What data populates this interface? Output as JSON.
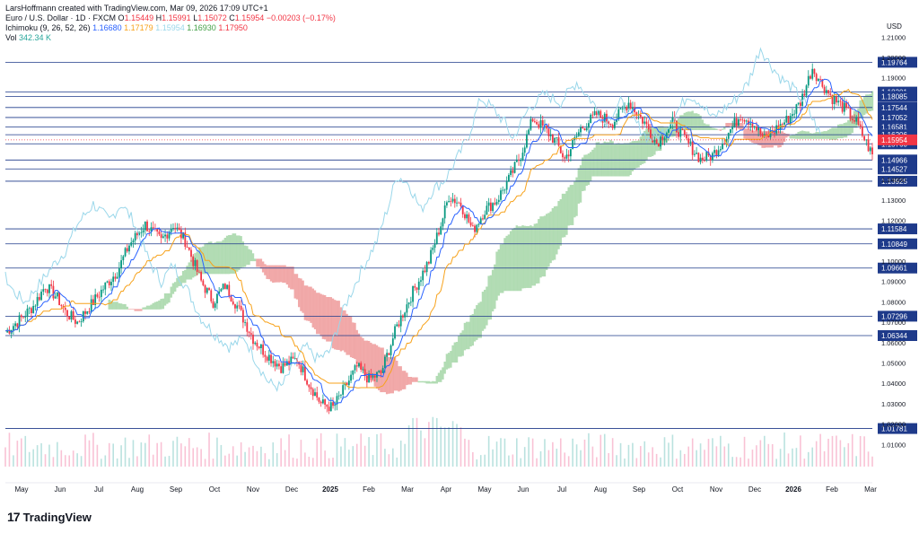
{
  "header": {
    "author_line": "LarsHoffmann created with TradingView.com, Mar 09, 2026 17:09 UTC+1",
    "symbol": "Euro / U.S. Dollar · 1D · FXCM",
    "ohlc": {
      "o_label": "O",
      "o": "1.15449",
      "h_label": "H",
      "h": "1.15991",
      "l_label": "L",
      "l": "1.15072",
      "c_label": "C",
      "c": "1.15954",
      "change": "−0.00203 (−0.17%)"
    },
    "ichimoku": {
      "label": "Ichimoku (9, 26, 52, 26)",
      "tenkan": "1.16680",
      "kijun": "1.17179",
      "lagging": "1.15954",
      "senkou_a": "1.16930",
      "senkou_b": "1.17950"
    },
    "volume": {
      "label": "Vol",
      "value": "342.34 K"
    }
  },
  "currency": "USD",
  "footer": {
    "logo": "TradingView"
  },
  "colors": {
    "up": "#089981",
    "down": "#f23645",
    "tenkan": "#2962ff",
    "kijun": "#f7a21b",
    "lagging": "#9ad7ea",
    "senkou_a": "#43a047",
    "senkou_b": "#c62828",
    "cloud_up": "#a5d6a7",
    "cloud_down": "#ef9a9a",
    "level_line": "#1e3a8a",
    "label_bg": "#1e3a8a",
    "price_label_bg": "#f23645"
  },
  "chart_data": {
    "type": "candlestick",
    "title": "Euro / U.S. Dollar · 1D · FXCM",
    "xlabel": "",
    "ylabel": "USD",
    "ylim": [
      1.0,
      1.215
    ],
    "x_ticks": [
      "May",
      "Jun",
      "Jul",
      "Aug",
      "Sep",
      "Oct",
      "Nov",
      "Dec",
      "2025",
      "Feb",
      "Mar",
      "Apr",
      "May",
      "Jun",
      "Jul",
      "Aug",
      "Sep",
      "Oct",
      "Nov",
      "Dec",
      "2026",
      "Feb",
      "Mar"
    ],
    "y_ticks": [
      "1.21000",
      "1.20000",
      "1.19000",
      "1.14000",
      "1.13000",
      "1.12000",
      "1.10000",
      "1.09000",
      "1.08000",
      "1.07000",
      "1.06000",
      "1.05000",
      "1.04000",
      "1.03000",
      "1.02000",
      "1.01000"
    ],
    "current_price": {
      "value": 1.15954,
      "label": "1.15954"
    },
    "horizontal_levels": [
      {
        "value": 1.19764,
        "label": "1.19764"
      },
      {
        "value": 1.18301,
        "label": "1.18301"
      },
      {
        "value": 1.18085,
        "label": "1.18085"
      },
      {
        "value": 1.17544,
        "label": "1.17544"
      },
      {
        "value": 1.17052,
        "label": "1.17052"
      },
      {
        "value": 1.16581,
        "label": "1.16581"
      },
      {
        "value": 1.16206,
        "label": "1.16206"
      },
      {
        "value": 1.1576,
        "label": "1.15760"
      },
      {
        "value": 1.14966,
        "label": "1.14966"
      },
      {
        "value": 1.14527,
        "label": "1.14527"
      },
      {
        "value": 1.13925,
        "label": "1.13925"
      },
      {
        "value": 1.11584,
        "label": "1.11584"
      },
      {
        "value": 1.10849,
        "label": "1.10849"
      },
      {
        "value": 1.09661,
        "label": "1.09661"
      },
      {
        "value": 1.07296,
        "label": "1.07296"
      },
      {
        "value": 1.06344,
        "label": "1.06344"
      },
      {
        "value": 1.01781,
        "label": "1.01781"
      }
    ],
    "price_path": [
      [
        0,
        1.065
      ],
      [
        8,
        1.072
      ],
      [
        14,
        1.078
      ],
      [
        20,
        1.088
      ],
      [
        26,
        1.082
      ],
      [
        30,
        1.075
      ],
      [
        36,
        1.07
      ],
      [
        44,
        1.08
      ],
      [
        50,
        1.088
      ],
      [
        56,
        1.095
      ],
      [
        62,
        1.108
      ],
      [
        70,
        1.118
      ],
      [
        78,
        1.11
      ],
      [
        84,
        1.118
      ],
      [
        90,
        1.11
      ],
      [
        98,
        1.09
      ],
      [
        104,
        1.08
      ],
      [
        110,
        1.088
      ],
      [
        116,
        1.078
      ],
      [
        124,
        1.062
      ],
      [
        130,
        1.055
      ],
      [
        138,
        1.048
      ],
      [
        146,
        1.052
      ],
      [
        152,
        1.04
      ],
      [
        158,
        1.03
      ],
      [
        164,
        1.028
      ],
      [
        170,
        1.038
      ],
      [
        176,
        1.048
      ],
      [
        182,
        1.042
      ],
      [
        188,
        1.045
      ],
      [
        196,
        1.068
      ],
      [
        204,
        1.085
      ],
      [
        212,
        1.1
      ],
      [
        218,
        1.118
      ],
      [
        222,
        1.132
      ],
      [
        228,
        1.128
      ],
      [
        234,
        1.115
      ],
      [
        240,
        1.125
      ],
      [
        246,
        1.13
      ],
      [
        252,
        1.14
      ],
      [
        258,
        1.152
      ],
      [
        264,
        1.17
      ],
      [
        270,
        1.165
      ],
      [
        276,
        1.158
      ],
      [
        280,
        1.15
      ],
      [
        288,
        1.165
      ],
      [
        296,
        1.172
      ],
      [
        304,
        1.168
      ],
      [
        312,
        1.178
      ],
      [
        320,
        1.168
      ],
      [
        326,
        1.158
      ],
      [
        334,
        1.168
      ],
      [
        340,
        1.16
      ],
      [
        348,
        1.15
      ],
      [
        354,
        1.152
      ],
      [
        360,
        1.16
      ],
      [
        368,
        1.172
      ],
      [
        374,
        1.168
      ],
      [
        380,
        1.16
      ],
      [
        386,
        1.165
      ],
      [
        392,
        1.17
      ],
      [
        398,
        1.178
      ],
      [
        404,
        1.195
      ],
      [
        408,
        1.188
      ],
      [
        414,
        1.18
      ],
      [
        420,
        1.175
      ],
      [
        426,
        1.168
      ],
      [
        430,
        1.16
      ],
      [
        434,
        1.152
      ]
    ],
    "series": [
      {
        "name": "Tenkan",
        "values": "derived"
      },
      {
        "name": "Kijun",
        "values": "derived"
      },
      {
        "name": "Lagging Span",
        "values": "derived"
      },
      {
        "name": "Senkou A",
        "values": "derived"
      },
      {
        "name": "Senkou B",
        "values": "derived"
      }
    ],
    "grid": false,
    "legend": "top-left"
  }
}
